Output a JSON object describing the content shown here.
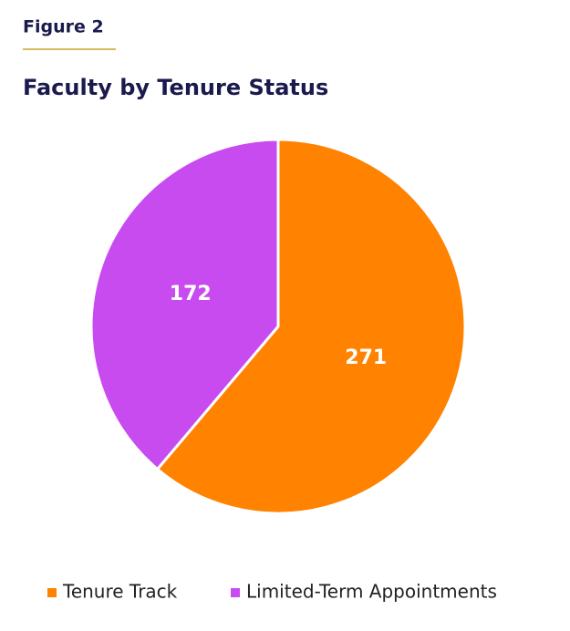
{
  "figure_label": "Figure 2",
  "chart_data": {
    "type": "pie",
    "title": "Faculty by Tenure Status",
    "categories": [
      "Tenure Track",
      "Limited-Term Appointments"
    ],
    "values": [
      271,
      172
    ],
    "colors": [
      "#ff8200",
      "#c84bf0"
    ],
    "legend": "bottom"
  }
}
